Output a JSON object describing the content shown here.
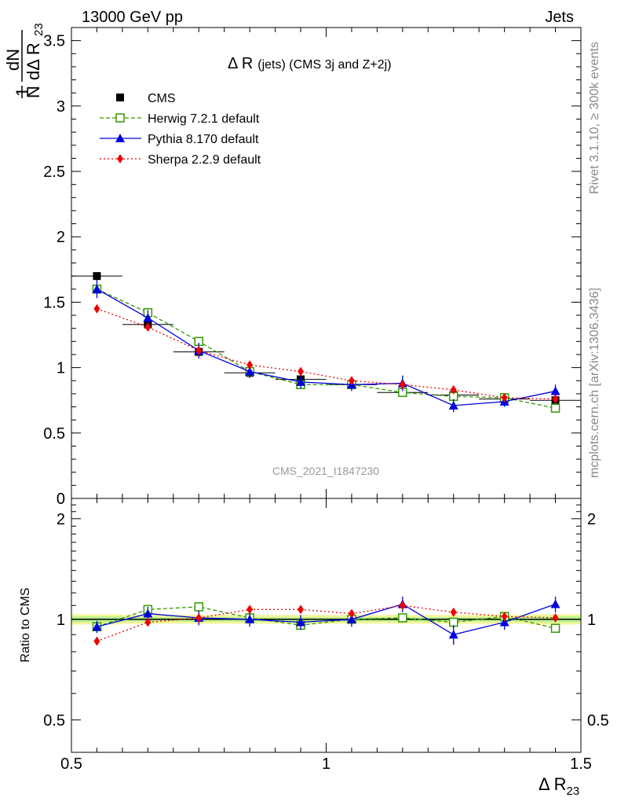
{
  "header": {
    "left": "13000 GeV pp",
    "right": "Jets"
  },
  "side_labels": {
    "rivet": "Rivet 3.1.10, ≥ 300k events",
    "mcplots": "mcplots.cern.ch [arXiv:1306.3436]"
  },
  "watermark": "CMS_2021_I1847230",
  "colors": {
    "cms": "#000000",
    "herwig": "#339900",
    "pythia": "#0000dd",
    "sherpa": "#ee0000",
    "band_outer": "#f2f59a",
    "band_inner": "#b9f28d"
  },
  "chart_data": [
    {
      "type": "line",
      "title": "Δ R (jets) (CMS 3j and Z+2j)",
      "title_main": "Δ R",
      "title_sub": "(jets) (CMS 3j and Z+2j)",
      "ylabel": {
        "num": "1",
        "frac_num": "dN",
        "frac_den_prefix": "N",
        "frac_den_main": "dΔ R",
        "frac_den_sub": "23"
      },
      "xlim": [
        0.5,
        1.5
      ],
      "ylim": [
        0,
        3.6
      ],
      "yticks": [
        0,
        0.5,
        1,
        1.5,
        2,
        2.5,
        3,
        3.5
      ],
      "ytick_labels": [
        "0",
        "0.5",
        "1",
        "1.5",
        "2",
        "2.5",
        "3",
        "3.5"
      ],
      "legend_position": "top-left",
      "x": [
        0.55,
        0.65,
        0.75,
        0.85,
        0.95,
        1.05,
        1.15,
        1.25,
        1.35,
        1.45
      ],
      "series": [
        {
          "name": "CMS",
          "key": "cms",
          "marker": "square-filled",
          "values": [
            1.7,
            1.33,
            1.12,
            0.96,
            0.91,
            0.87,
            0.81,
            0.79,
            0.76,
            0.75
          ],
          "errors": [
            0.02,
            0.02,
            0.02,
            0.02,
            0.02,
            0.02,
            0.02,
            0.02,
            0.02,
            0.02
          ]
        },
        {
          "name": "Herwig 7.2.1 default",
          "key": "herwig",
          "marker": "square-open",
          "dash": "dashed",
          "values": [
            1.6,
            1.42,
            1.2,
            0.97,
            0.87,
            0.87,
            0.81,
            0.78,
            0.77,
            0.69
          ],
          "errors": [
            0.03,
            0.03,
            0.03,
            0.02,
            0.02,
            0.02,
            0.02,
            0.02,
            0.02,
            0.02
          ]
        },
        {
          "name": "Pythia 8.170 default",
          "key": "pythia",
          "marker": "triangle",
          "dash": "solid",
          "values": [
            1.6,
            1.38,
            1.13,
            0.97,
            0.89,
            0.87,
            0.88,
            0.71,
            0.74,
            0.82
          ],
          "errors": [
            0.07,
            0.06,
            0.06,
            0.05,
            0.05,
            0.05,
            0.06,
            0.05,
            0.04,
            0.05
          ]
        },
        {
          "name": "Sherpa 2.2.9 default",
          "key": "sherpa",
          "marker": "diamond",
          "dash": "dotted",
          "values": [
            1.45,
            1.31,
            1.13,
            1.02,
            0.97,
            0.9,
            0.87,
            0.83,
            0.77,
            0.76
          ],
          "errors": [
            0.01,
            0.01,
            0.01,
            0.01,
            0.01,
            0.01,
            0.01,
            0.01,
            0.01,
            0.01
          ]
        }
      ]
    },
    {
      "type": "line",
      "ylabel": "Ratio to CMS",
      "xlabel_main": "Δ R",
      "xlabel_sub": "23",
      "xlim": [
        0.5,
        1.5
      ],
      "ylim": [
        0.4,
        2.3
      ],
      "yscale": "log",
      "yticks": [
        0.5,
        1,
        2
      ],
      "ytick_labels": [
        "0.5",
        "1",
        "2"
      ],
      "xticks": [
        0.5,
        1,
        1.5
      ],
      "xtick_labels": [
        "0.5",
        "1",
        "1.5"
      ],
      "x": [
        0.55,
        0.65,
        0.75,
        0.85,
        0.95,
        1.05,
        1.15,
        1.25,
        1.35,
        1.45
      ],
      "cms_band": {
        "outer": [
          0.035,
          0.03,
          0.03,
          0.03,
          0.03,
          0.03,
          0.03,
          0.03,
          0.03,
          0.035
        ],
        "inner": [
          0.02,
          0.015,
          0.015,
          0.015,
          0.015,
          0.015,
          0.015,
          0.015,
          0.015,
          0.02
        ]
      },
      "series": [
        {
          "name": "Herwig 7.2.1 default",
          "key": "herwig",
          "marker": "square-open",
          "dash": "dashed",
          "values": [
            0.95,
            1.07,
            1.09,
            1.01,
            0.96,
            1.0,
            1.01,
            0.98,
            1.02,
            0.94
          ],
          "errors": [
            0.02,
            0.02,
            0.02,
            0.02,
            0.02,
            0.02,
            0.02,
            0.02,
            0.02,
            0.02
          ]
        },
        {
          "name": "Pythia 8.170 default",
          "key": "pythia",
          "marker": "triangle",
          "dash": "solid",
          "values": [
            0.95,
            1.04,
            1.01,
            1.0,
            0.98,
            1.0,
            1.11,
            0.9,
            0.98,
            1.11
          ],
          "errors": [
            0.04,
            0.05,
            0.05,
            0.05,
            0.05,
            0.05,
            0.06,
            0.06,
            0.05,
            0.06
          ]
        },
        {
          "name": "Sherpa 2.2.9 default",
          "key": "sherpa",
          "marker": "diamond",
          "dash": "dotted",
          "values": [
            0.86,
            0.98,
            1.01,
            1.07,
            1.07,
            1.04,
            1.1,
            1.05,
            1.02,
            1.01
          ],
          "errors": [
            0.01,
            0.01,
            0.01,
            0.01,
            0.01,
            0.01,
            0.01,
            0.01,
            0.01,
            0.01
          ]
        }
      ]
    }
  ]
}
